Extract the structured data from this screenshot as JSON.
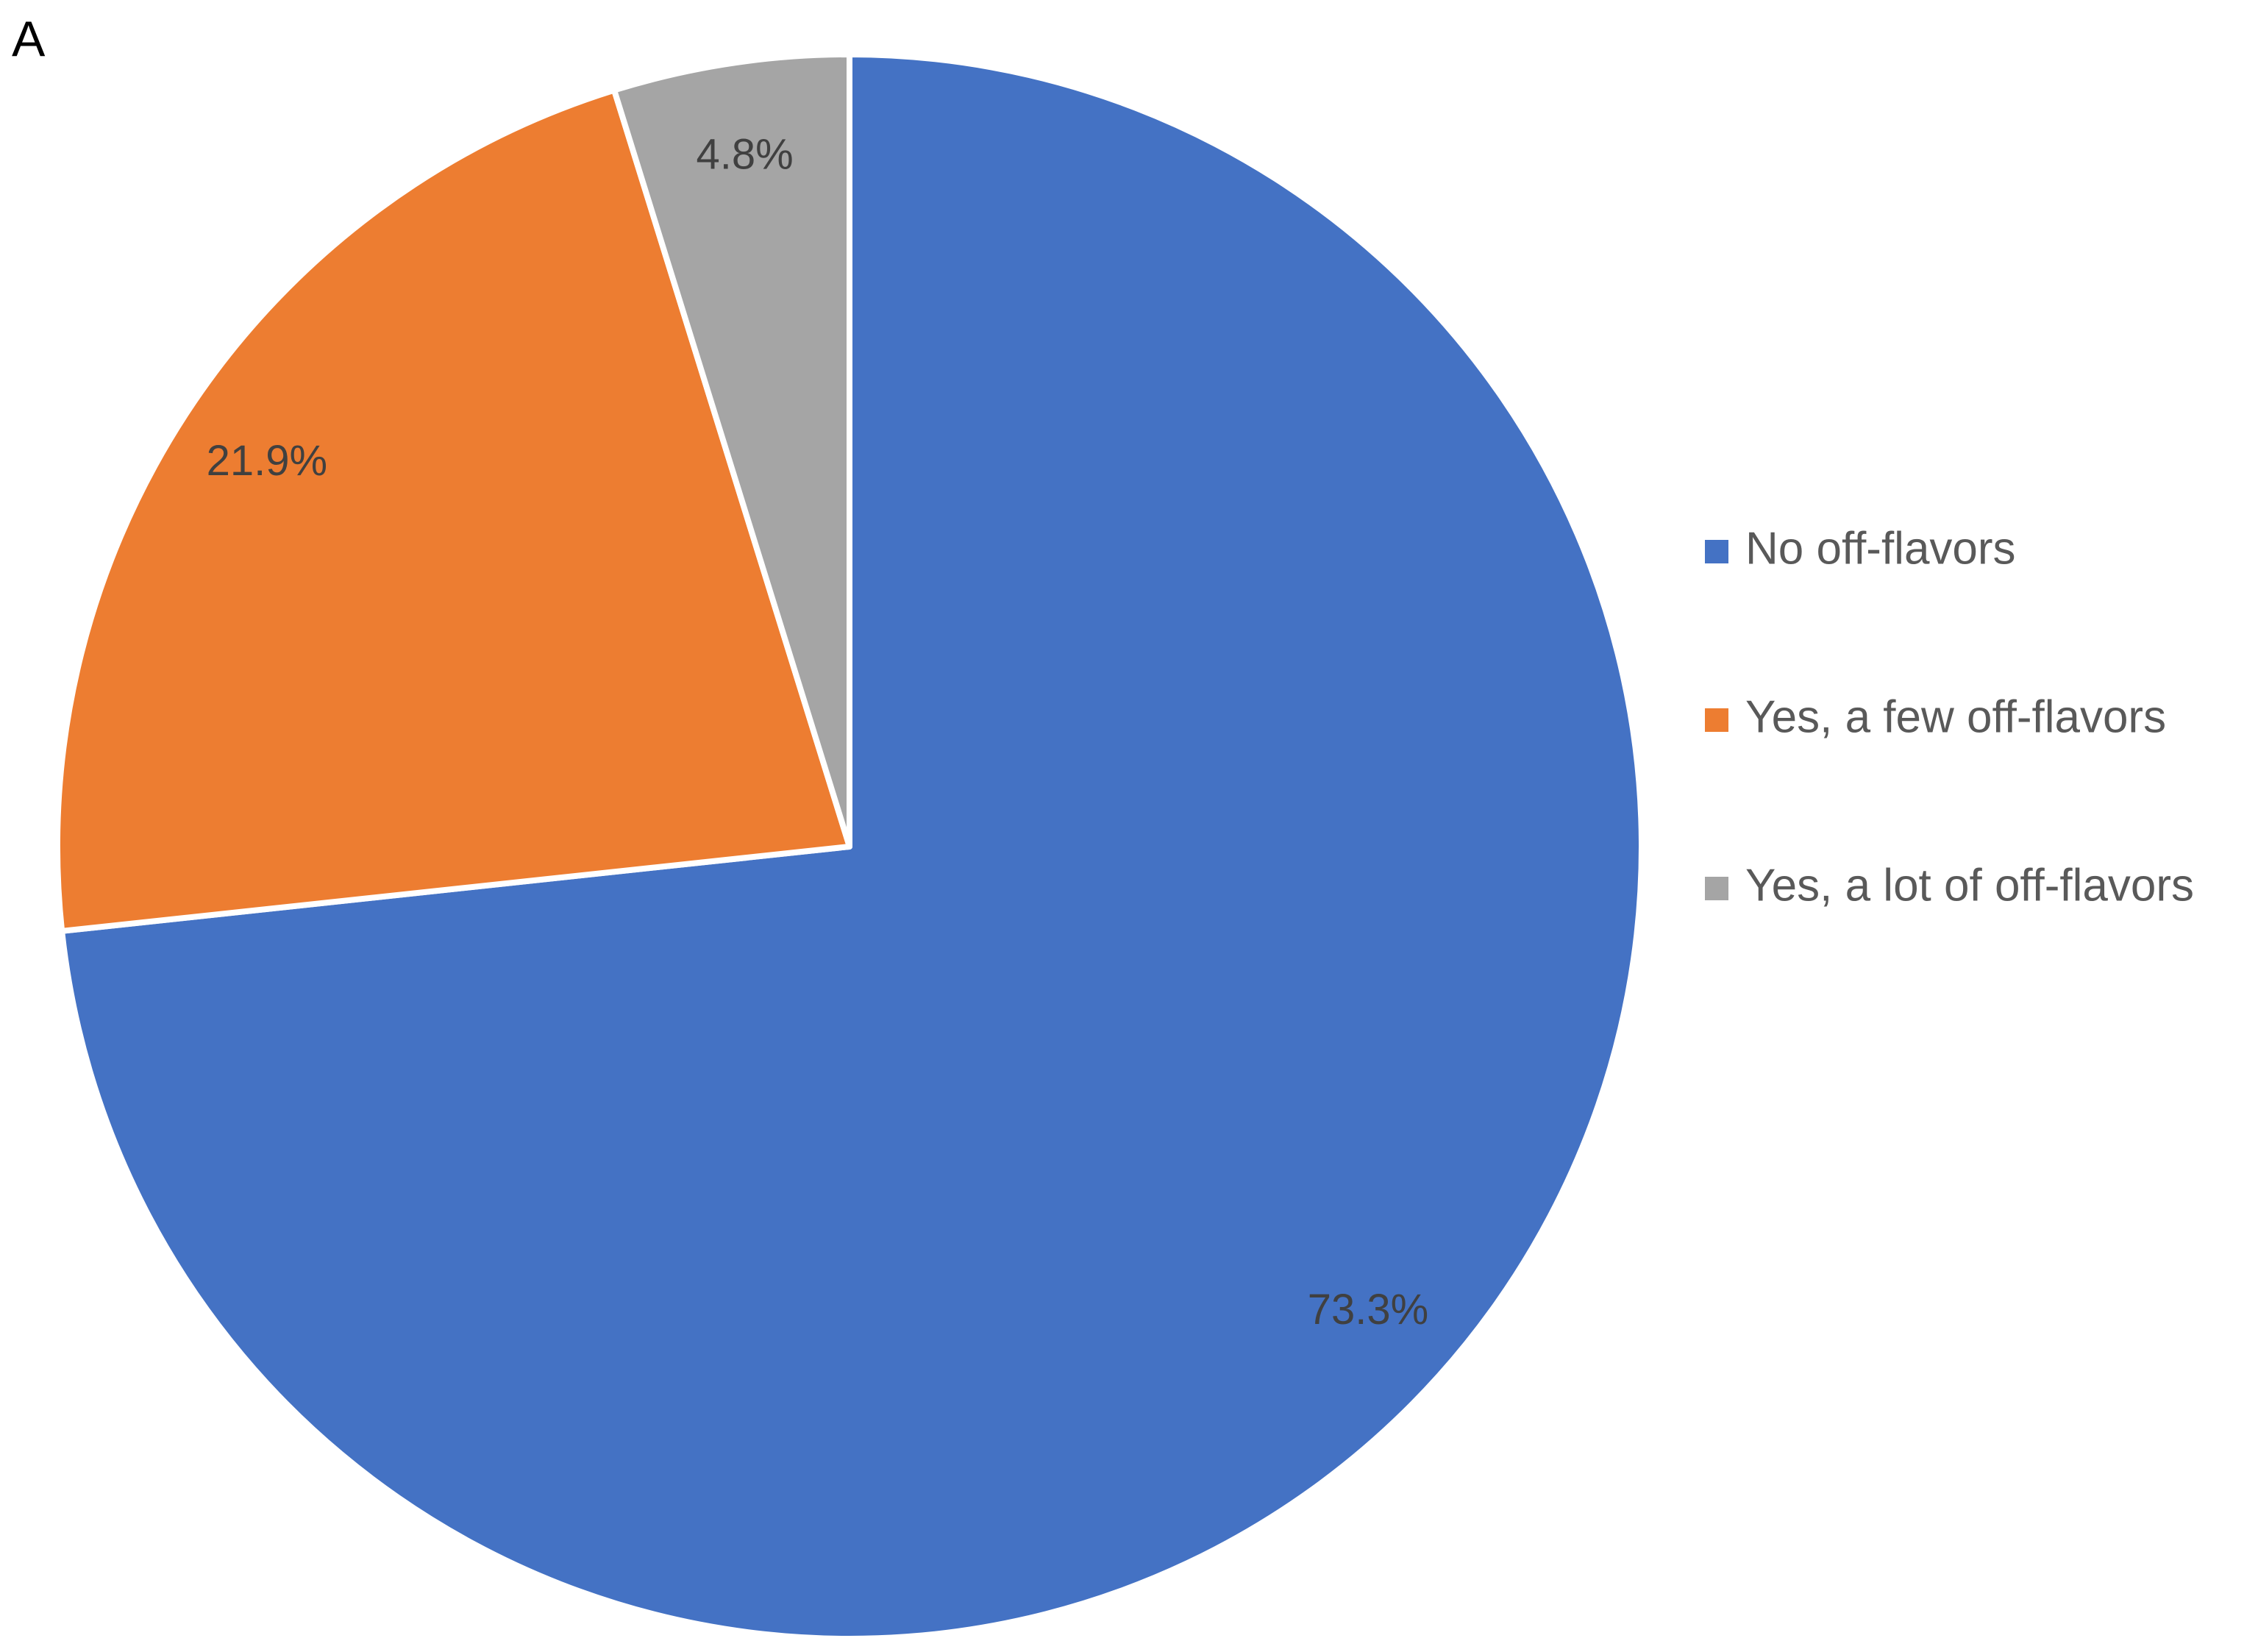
{
  "chart_data": {
    "type": "pie",
    "panel_label": "A",
    "categories": [
      "No off-flavors",
      "Yes, a few off-flavors",
      "Yes, a lot of off-flavors"
    ],
    "values": [
      73.3,
      21.9,
      4.8
    ],
    "value_labels": [
      "73.3%",
      "21.9%",
      "4.8%"
    ],
    "colors": [
      "#4472c4",
      "#ed7d31",
      "#a5a5a5"
    ],
    "legend": "right"
  }
}
